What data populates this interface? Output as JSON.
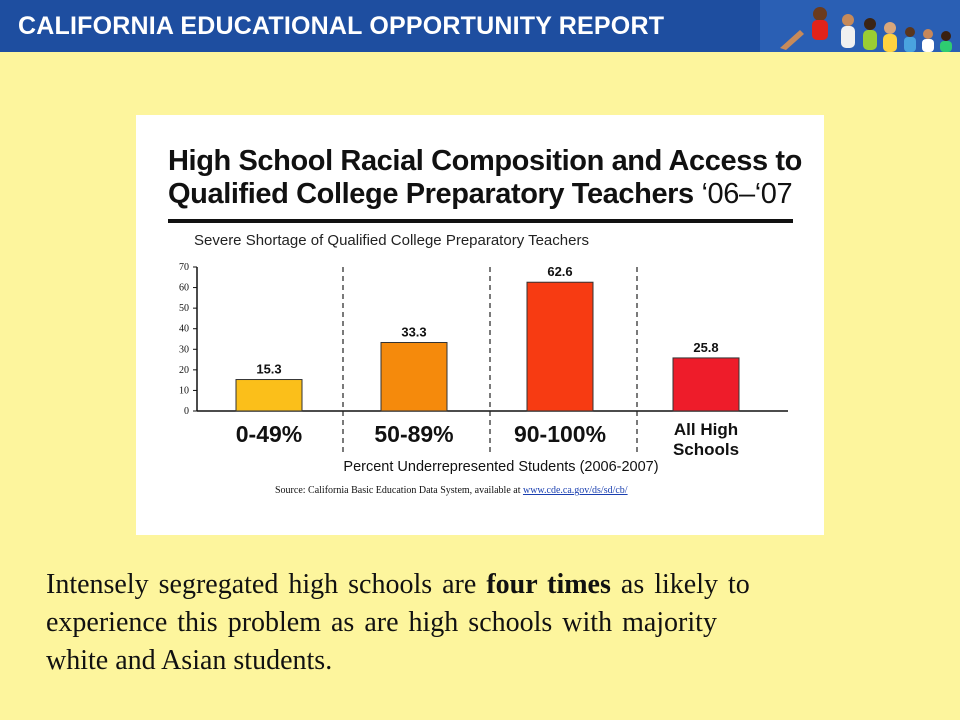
{
  "header": {
    "title": "CALIFORNIA EDUCATIONAL OPPORTUNITY REPORT",
    "photo_icon": "students-photo-icon"
  },
  "chart_data": {
    "type": "bar",
    "title_main": "High School Racial Composition and Access to",
    "title_line2": "Qualified College Preparatory Teachers",
    "title_year": "‘06–‘07",
    "subtitle": "Severe Shortage of Qualified College Preparatory Teachers",
    "categories": [
      "0-49%",
      "50-89%",
      "90-100%",
      "All High Schools"
    ],
    "values": [
      15.3,
      33.3,
      62.6,
      25.8
    ],
    "data_labels": [
      "15.3",
      "33.3",
      "62.6",
      "25.8"
    ],
    "colors": [
      "#fbbf1a",
      "#f58a0c",
      "#f73b12",
      "#ee1c2a"
    ],
    "xlabel": "Percent Underrepresented Students (2006-2007)",
    "ylabel": "",
    "ylim": [
      0,
      70
    ],
    "yticks": [
      "0",
      "10",
      "20",
      "30",
      "40",
      "50",
      "60",
      "70"
    ],
    "source_prefix": "Source:  California Basic Education Data System, available at ",
    "source_link": "www.cde.ca.gov/ds/sd/cb/"
  },
  "caption": {
    "l1_a": "Intensely segregated high schools are ",
    "l1_b": "four times",
    "l1_c": " as likely to",
    "l2": "experience this problem as are high schools with majority",
    "l3": "white and Asian students."
  }
}
